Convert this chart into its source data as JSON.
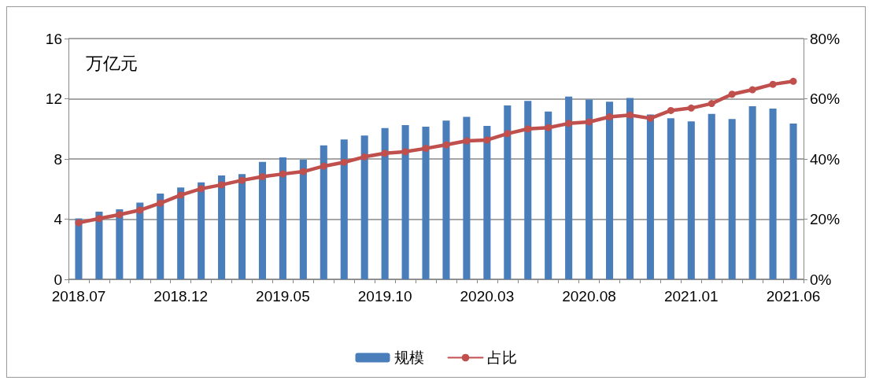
{
  "chart_data": {
    "type": "bar",
    "ylabel": "万亿元",
    "categories": [
      "2018.07",
      null,
      null,
      null,
      null,
      "2018.12",
      null,
      null,
      null,
      null,
      "2019.05",
      null,
      null,
      null,
      null,
      "2019.10",
      null,
      null,
      null,
      null,
      "2020.03",
      null,
      null,
      null,
      null,
      "2020.08",
      null,
      null,
      null,
      null,
      "2021.01",
      null,
      null,
      null,
      null,
      "2021.06"
    ],
    "series": [
      {
        "name": "规模",
        "color": "#4a7ebb",
        "values": [
          4.05,
          4.5,
          4.65,
          5.1,
          5.7,
          6.1,
          6.45,
          6.9,
          7.0,
          7.8,
          8.1,
          7.95,
          8.9,
          9.3,
          9.55,
          10.05,
          10.25,
          10.15,
          10.55,
          10.8,
          10.2,
          11.55,
          11.85,
          11.15,
          12.15,
          11.95,
          11.8,
          12.05,
          10.95,
          10.7,
          10.5,
          11.0,
          10.65,
          11.5,
          11.35,
          10.35
        ]
      },
      {
        "name": "占比",
        "type": "line",
        "axis": "y2",
        "color": "#c0504d",
        "marker": "circle",
        "values": [
          18.8,
          20.2,
          21.5,
          23.0,
          25.3,
          28.0,
          30.1,
          31.4,
          32.9,
          34.1,
          35.0,
          35.8,
          37.6,
          38.9,
          40.7,
          41.9,
          42.4,
          43.5,
          44.7,
          46.0,
          46.3,
          48.4,
          50.0,
          50.4,
          51.8,
          52.3,
          54.0,
          54.6,
          53.5,
          56.1,
          56.9,
          58.4,
          61.5,
          63.0,
          64.8,
          65.8
        ]
      }
    ],
    "ylim": [
      0,
      16
    ],
    "yticks": [
      0,
      4,
      8,
      12,
      16
    ],
    "y2lim": [
      0,
      80
    ],
    "y2ticks": [
      {
        "value": 0,
        "label": "0%"
      },
      {
        "value": 20,
        "label": "20%"
      },
      {
        "value": 40,
        "label": "40%"
      },
      {
        "value": 60,
        "label": "60%"
      },
      {
        "value": 80,
        "label": "80%"
      }
    ],
    "grid": "y",
    "legend": "bottom"
  }
}
